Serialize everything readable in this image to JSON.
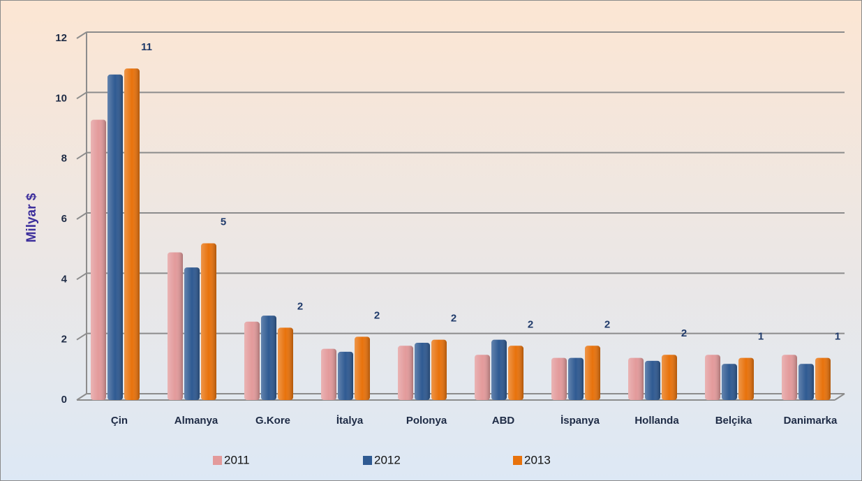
{
  "chart_data": {
    "type": "bar",
    "y_axis_label": "Milyar $",
    "categories": [
      "Çin",
      "Almanya",
      "G.Kore",
      "İtalya",
      "Polonya",
      "ABD",
      "İspanya",
      "Hollanda",
      "Belçika",
      "Danimarka"
    ],
    "series": [
      {
        "name": "2011",
        "color": "#e39a9b",
        "values": [
          9.3,
          4.9,
          2.6,
          1.7,
          1.8,
          1.5,
          1.4,
          1.4,
          1.5,
          1.5
        ]
      },
      {
        "name": "2012",
        "color": "#2f5a92",
        "values": [
          10.8,
          4.4,
          2.8,
          1.6,
          1.9,
          2.0,
          1.4,
          1.3,
          1.2,
          1.2
        ]
      },
      {
        "name": "2013",
        "color": "#e8720c",
        "values": [
          11.0,
          5.2,
          2.4,
          2.1,
          2.0,
          1.8,
          1.8,
          1.5,
          1.4,
          1.4
        ],
        "value_labels": [
          "11",
          "5",
          "2",
          "2",
          "2",
          "2",
          "2",
          "2",
          "1",
          "1"
        ]
      }
    ],
    "ylim": [
      0,
      12
    ],
    "yticks": [
      0,
      2,
      4,
      6,
      8,
      10,
      12
    ],
    "grid": true,
    "legend": "bottom"
  }
}
